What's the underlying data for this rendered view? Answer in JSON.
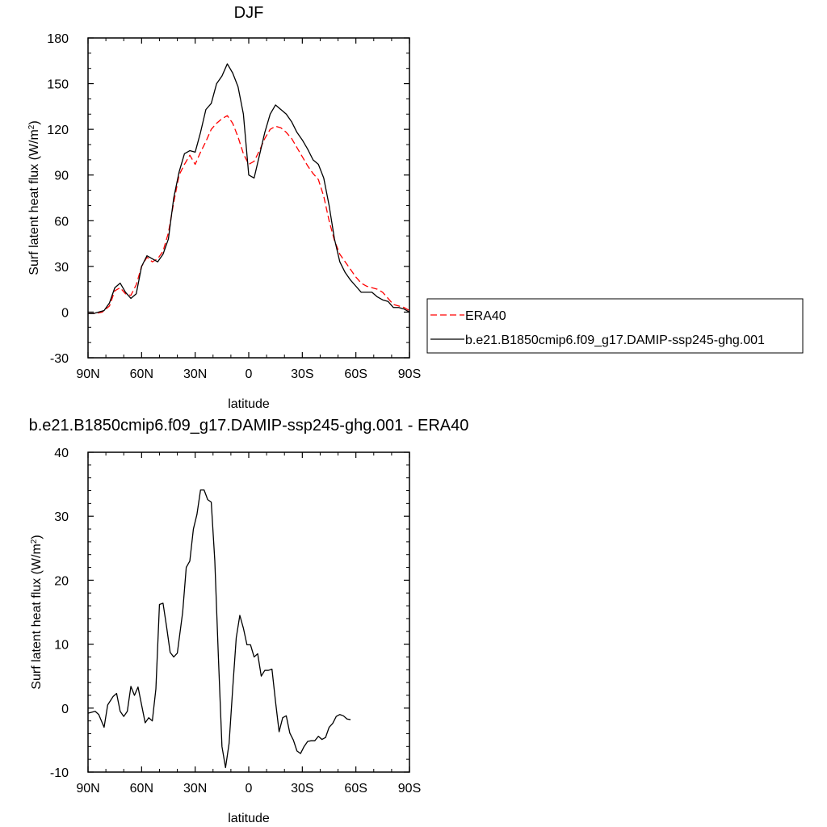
{
  "chart_data": [
    {
      "type": "line",
      "title": "DJF",
      "xlabel": "latitude",
      "ylabel": "Surf latent heat flux (W/m",
      "ylabel_sup": "2",
      "ylabel_tail": ")",
      "xlim": [
        90,
        -90
      ],
      "ylim": [
        -30,
        180
      ],
      "xticks": [
        90,
        60,
        30,
        0,
        -30,
        -60,
        -90
      ],
      "xtick_labels": [
        "90N",
        "60N",
        "30N",
        "0",
        "30S",
        "60S",
        "90S"
      ],
      "yticks": [
        -30,
        0,
        30,
        60,
        90,
        120,
        150,
        180
      ],
      "ytick_labels": [
        "-30",
        "0",
        "30",
        "60",
        "90",
        "120",
        "150",
        "180"
      ],
      "legend": "right",
      "series": [
        {
          "name": "ERA40",
          "color": "#ff0000",
          "dash": true,
          "points": [
            [
              90,
              -1
            ],
            [
              86,
              -1
            ],
            [
              82,
              0
            ],
            [
              78,
              4
            ],
            [
              75,
              14
            ],
            [
              72,
              16
            ],
            [
              69,
              12
            ],
            [
              66,
              11
            ],
            [
              63,
              18
            ],
            [
              60,
              30
            ],
            [
              57,
              36
            ],
            [
              54,
              33
            ],
            [
              51,
              35
            ],
            [
              48,
              40
            ],
            [
              45,
              52
            ],
            [
              42,
              72
            ],
            [
              39,
              90
            ],
            [
              36,
              97
            ],
            [
              33,
              103
            ],
            [
              30,
              97
            ],
            [
              27,
              105
            ],
            [
              24,
              112
            ],
            [
              21,
              120
            ],
            [
              18,
              124
            ],
            [
              15,
              127
            ],
            [
              12,
              129
            ],
            [
              9,
              124
            ],
            [
              6,
              115
            ],
            [
              3,
              104
            ],
            [
              0,
              97
            ],
            [
              -3,
              99
            ],
            [
              -6,
              106
            ],
            [
              -9,
              114
            ],
            [
              -12,
              120
            ],
            [
              -15,
              122
            ],
            [
              -18,
              121
            ],
            [
              -21,
              118
            ],
            [
              -24,
              114
            ],
            [
              -27,
              108
            ],
            [
              -30,
              102
            ],
            [
              -33,
              96
            ],
            [
              -36,
              91
            ],
            [
              -39,
              87
            ],
            [
              -42,
              76
            ],
            [
              -45,
              60
            ],
            [
              -48,
              47
            ],
            [
              -51,
              38
            ],
            [
              -54,
              33
            ],
            [
              -57,
              28
            ],
            [
              -60,
              23
            ],
            [
              -63,
              19
            ],
            [
              -66,
              17
            ],
            [
              -69,
              16
            ],
            [
              -72,
              15
            ],
            [
              -75,
              13
            ],
            [
              -78,
              9
            ],
            [
              -81,
              5
            ],
            [
              -84,
              4
            ],
            [
              -87,
              3
            ],
            [
              -90,
              1
            ]
          ]
        },
        {
          "name": "b.e21.B1850cmip6.f09_g17.DAMIP-ssp245-ghg.001",
          "color": "#000000",
          "dash": false,
          "points": [
            [
              90,
              -1
            ],
            [
              87,
              -1
            ],
            [
              84,
              0
            ],
            [
              81,
              1
            ],
            [
              78,
              6
            ],
            [
              75,
              16
            ],
            [
              72,
              19
            ],
            [
              69,
              13
            ],
            [
              66,
              9
            ],
            [
              63,
              12
            ],
            [
              60,
              30
            ],
            [
              57,
              37
            ],
            [
              54,
              35
            ],
            [
              51,
              33
            ],
            [
              48,
              38
            ],
            [
              45,
              48
            ],
            [
              42,
              75
            ],
            [
              39,
              92
            ],
            [
              36,
              104
            ],
            [
              33,
              106
            ],
            [
              30,
              105
            ],
            [
              27,
              118
            ],
            [
              24,
              133
            ],
            [
              21,
              137
            ],
            [
              18,
              150
            ],
            [
              15,
              155
            ],
            [
              12,
              163
            ],
            [
              9,
              157
            ],
            [
              6,
              148
            ],
            [
              3,
              130
            ],
            [
              0,
              90
            ],
            [
              -3,
              88
            ],
            [
              -6,
              103
            ],
            [
              -9,
              118
            ],
            [
              -12,
              130
            ],
            [
              -15,
              136
            ],
            [
              -18,
              133
            ],
            [
              -21,
              130
            ],
            [
              -24,
              125
            ],
            [
              -27,
              118
            ],
            [
              -30,
              113
            ],
            [
              -33,
              107
            ],
            [
              -36,
              100
            ],
            [
              -39,
              97
            ],
            [
              -42,
              88
            ],
            [
              -45,
              70
            ],
            [
              -48,
              48
            ],
            [
              -51,
              33
            ],
            [
              -54,
              26
            ],
            [
              -57,
              21
            ],
            [
              -60,
              17
            ],
            [
              -63,
              13
            ],
            [
              -66,
              13
            ],
            [
              -69,
              13
            ],
            [
              -72,
              10
            ],
            [
              -75,
              8
            ],
            [
              -78,
              7
            ],
            [
              -81,
              3
            ],
            [
              -84,
              3
            ],
            [
              -87,
              2
            ],
            [
              -90,
              0
            ]
          ]
        }
      ]
    },
    {
      "type": "line",
      "title": "b.e21.B1850cmip6.f09_g17.DAMIP-ssp245-ghg.001 - ERA40",
      "xlabel": "latitude",
      "ylabel": "Surf latent heat flux (W/m",
      "ylabel_sup": "2",
      "ylabel_tail": ")",
      "xlim": [
        90,
        -90
      ],
      "ylim": [
        -10,
        40
      ],
      "xticks": [
        90,
        60,
        30,
        0,
        -30,
        -60,
        -90
      ],
      "xtick_labels": [
        "90N",
        "60N",
        "30N",
        "0",
        "30S",
        "60S",
        "90S"
      ],
      "yticks": [
        -10,
        0,
        10,
        20,
        30,
        40
      ],
      "ytick_labels": [
        "-10",
        "0",
        "10",
        "20",
        "30",
        "40"
      ],
      "series": [
        {
          "color": "#000000",
          "dash": false,
          "points": [
            [
              90,
              -0.8
            ],
            [
              86,
              -0.5
            ],
            [
              84,
              -1
            ],
            [
              81,
              -3
            ],
            [
              79,
              0.5
            ],
            [
              76,
              1.8
            ],
            [
              74,
              2.3
            ],
            [
              72,
              -0.5
            ],
            [
              70,
              -1.3
            ],
            [
              68,
              -0.5
            ],
            [
              66,
              3.4
            ],
            [
              64,
              2
            ],
            [
              62,
              3.3
            ],
            [
              60,
              0.5
            ],
            [
              58,
              -2.3
            ],
            [
              56,
              -1.5
            ],
            [
              54,
              -2
            ],
            [
              52,
              3
            ],
            [
              50,
              16.2
            ],
            [
              48,
              16.4
            ],
            [
              46,
              12.7
            ],
            [
              44,
              8.7
            ],
            [
              42,
              8
            ],
            [
              40,
              8.6
            ],
            [
              37,
              15
            ],
            [
              35,
              22
            ],
            [
              33,
              23
            ],
            [
              31,
              28
            ],
            [
              29,
              30.3
            ],
            [
              27,
              34.1
            ],
            [
              25,
              34.1
            ],
            [
              23,
              32.6
            ],
            [
              21,
              32.2
            ],
            [
              19,
              23
            ],
            [
              17,
              8
            ],
            [
              15,
              -6
            ],
            [
              13,
              -9.3
            ],
            [
              11,
              -5.5
            ],
            [
              9,
              3
            ],
            [
              7,
              11
            ],
            [
              5,
              14.5
            ],
            [
              3,
              12.5
            ],
            [
              1,
              9.9
            ],
            [
              -1,
              9.9
            ],
            [
              -3,
              8
            ],
            [
              -5,
              8.5
            ],
            [
              -7,
              5
            ],
            [
              -9,
              5.9
            ],
            [
              -11,
              5.9
            ],
            [
              -13,
              6.1
            ],
            [
              -15,
              1
            ],
            [
              -17,
              -3.7
            ],
            [
              -19,
              -1.5
            ],
            [
              -21,
              -1.2
            ],
            [
              -23,
              -3.9
            ],
            [
              -25,
              -5
            ],
            [
              -27,
              -6.7
            ],
            [
              -29,
              -7.1
            ],
            [
              -31,
              -6
            ],
            [
              -33,
              -5.2
            ],
            [
              -35,
              -5.1
            ],
            [
              -37,
              -5.1
            ],
            [
              -39,
              -4.4
            ],
            [
              -41,
              -4.9
            ],
            [
              -43,
              -4.6
            ],
            [
              -45,
              -3
            ],
            [
              -47,
              -2.4
            ],
            [
              -49,
              -1.3
            ],
            [
              -51,
              -1
            ],
            [
              -53,
              -1.2
            ],
            [
              -55,
              -1.7
            ],
            [
              -57,
              -1.8
            ]
          ]
        }
      ]
    }
  ]
}
